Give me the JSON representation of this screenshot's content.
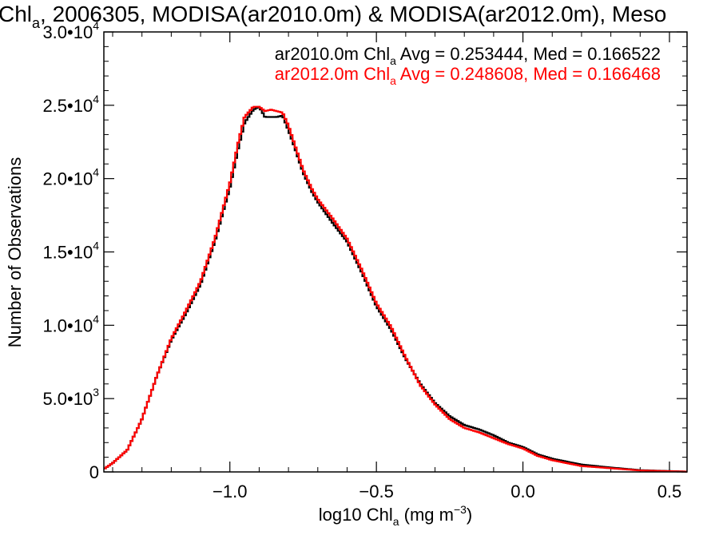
{
  "chart_data": {
    "type": "line",
    "title": {
      "prefix": "Chl",
      "prefix_sub": "a",
      "rest": ", 2006305, MODISA(ar2010.0m) & MODISA(ar2012.0m), Meso"
    },
    "xlabel": {
      "main": "log10 Chl",
      "sub": "a",
      "units_open": " (mg m",
      "units_sup": "−3",
      "units_close": ")"
    },
    "ylabel": "Number of Observations",
    "xlim": [
      -1.43,
      0.56
    ],
    "ylim": [
      0,
      30000
    ],
    "x_ticks": [
      {
        "value": -1.0,
        "label": "−1.0"
      },
      {
        "value": -0.5,
        "label": "−0.5"
      },
      {
        "value": 0.0,
        "label": "0.0"
      },
      {
        "value": 0.5,
        "label": "0.5"
      }
    ],
    "y_ticks": [
      {
        "value": 0,
        "mantissa": "0",
        "exp": ""
      },
      {
        "value": 5000,
        "mantissa": "5.0•10",
        "exp": "3"
      },
      {
        "value": 10000,
        "mantissa": "1.0•10",
        "exp": "4"
      },
      {
        "value": 15000,
        "mantissa": "1.5•10",
        "exp": "4"
      },
      {
        "value": 20000,
        "mantissa": "2.0•10",
        "exp": "4"
      },
      {
        "value": 25000,
        "mantissa": "2.5•10",
        "exp": "4"
      },
      {
        "value": 30000,
        "mantissa": "3.0•10",
        "exp": "4"
      }
    ],
    "grid": false,
    "legend_position": "top-right",
    "series": [
      {
        "name": "ar2010.0m",
        "color": "#000000",
        "legend": {
          "pre": "ar2010.0m Chl",
          "sub": "a",
          "post": " Avg = 0.253444, Med = 0.166522"
        },
        "x": [
          -1.43,
          -1.4,
          -1.35,
          -1.3,
          -1.25,
          -1.2,
          -1.15,
          -1.1,
          -1.05,
          -1.0,
          -0.97,
          -0.95,
          -0.92,
          -0.9,
          -0.88,
          -0.86,
          -0.84,
          -0.82,
          -0.8,
          -0.78,
          -0.75,
          -0.72,
          -0.7,
          -0.65,
          -0.6,
          -0.55,
          -0.5,
          -0.45,
          -0.4,
          -0.35,
          -0.3,
          -0.25,
          -0.2,
          -0.15,
          -0.1,
          -0.05,
          0.0,
          0.05,
          0.1,
          0.15,
          0.2,
          0.3,
          0.4,
          0.5,
          0.56
        ],
        "values": [
          200,
          600,
          1500,
          3600,
          6500,
          9000,
          10800,
          12800,
          15800,
          19400,
          22200,
          23800,
          24700,
          24900,
          24200,
          24200,
          24200,
          24300,
          23300,
          22200,
          20400,
          19100,
          18400,
          17000,
          15700,
          13600,
          11300,
          9700,
          7700,
          6000,
          4700,
          3800,
          3200,
          2900,
          2500,
          2000,
          1700,
          1200,
          900,
          700,
          500,
          300,
          120,
          60,
          20
        ]
      },
      {
        "name": "ar2012.0m",
        "color": "#ff0000",
        "legend": {
          "pre": "ar2012.0m Chl",
          "sub": "a",
          "post": " Avg = 0.248608, Med = 0.166468"
        },
        "x": [
          -1.43,
          -1.4,
          -1.35,
          -1.3,
          -1.25,
          -1.2,
          -1.15,
          -1.1,
          -1.05,
          -1.0,
          -0.97,
          -0.95,
          -0.92,
          -0.9,
          -0.88,
          -0.86,
          -0.84,
          -0.82,
          -0.8,
          -0.78,
          -0.75,
          -0.72,
          -0.7,
          -0.65,
          -0.6,
          -0.55,
          -0.5,
          -0.45,
          -0.4,
          -0.35,
          -0.3,
          -0.25,
          -0.2,
          -0.15,
          -0.1,
          -0.05,
          0.0,
          0.05,
          0.1,
          0.15,
          0.2,
          0.3,
          0.4,
          0.5,
          0.56
        ],
        "values": [
          200,
          600,
          1500,
          3600,
          6500,
          9100,
          11000,
          13000,
          16000,
          19700,
          22600,
          24200,
          24900,
          24900,
          24600,
          24700,
          24600,
          24500,
          23600,
          22400,
          20600,
          19300,
          18600,
          17300,
          15900,
          13800,
          11500,
          9900,
          7800,
          5900,
          4600,
          3600,
          3000,
          2700,
          2300,
          1900,
          1600,
          1100,
          800,
          600,
          400,
          250,
          100,
          50,
          20
        ]
      }
    ]
  }
}
